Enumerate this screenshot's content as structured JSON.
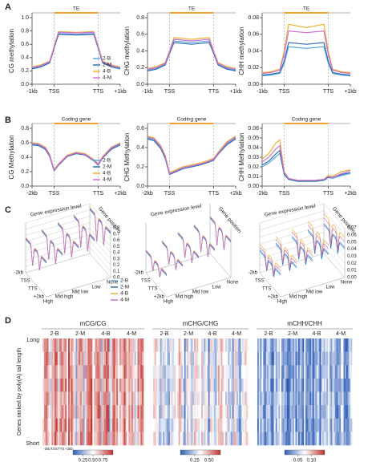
{
  "panels": [
    "A",
    "B",
    "C",
    "D"
  ],
  "chart_data": [
    {
      "type": "line",
      "ylabel": "CG methylation",
      "annotation": "TE",
      "annotation_color": "#f0a030",
      "legend": "lower right",
      "x": [
        0,
        4,
        8,
        10,
        12,
        20,
        28,
        30,
        32,
        36,
        40
      ],
      "xlim": [
        0,
        40
      ],
      "xticks": [
        {
          "value": 0,
          "label": "-1kb"
        },
        {
          "value": 10,
          "label": "TSS"
        },
        {
          "value": 30,
          "label": "TTS"
        },
        {
          "value": 40,
          "label": "+1kb"
        }
      ],
      "ylim": [
        0,
        1
      ],
      "yticks": [
        {
          "value": 0,
          "label": "0.0"
        },
        0.2,
        0.4,
        0.6,
        0.8,
        {
          "value": 1,
          "label": "1.0"
        }
      ],
      "series": [
        {
          "name": "2-B",
          "color": "#5aa6e0",
          "values": [
            0.24,
            0.27,
            0.33,
            0.55,
            0.76,
            0.75,
            0.76,
            0.55,
            0.33,
            0.27,
            0.24
          ]
        },
        {
          "name": "2-M",
          "color": "#2f6fb8",
          "values": [
            0.23,
            0.26,
            0.32,
            0.54,
            0.75,
            0.74,
            0.75,
            0.54,
            0.32,
            0.26,
            0.23
          ]
        },
        {
          "name": "4-B",
          "color": "#f0b030",
          "values": [
            0.26,
            0.29,
            0.35,
            0.57,
            0.79,
            0.78,
            0.79,
            0.57,
            0.35,
            0.29,
            0.26
          ]
        },
        {
          "name": "4-M",
          "color": "#d070d0",
          "values": [
            0.25,
            0.28,
            0.34,
            0.56,
            0.78,
            0.77,
            0.78,
            0.56,
            0.34,
            0.28,
            0.25
          ]
        }
      ]
    },
    {
      "type": "line",
      "ylabel": "CHG methylation",
      "annotation": "TE",
      "annotation_color": "#f0a030",
      "x": [
        0,
        4,
        8,
        10,
        12,
        20,
        28,
        30,
        32,
        36,
        40
      ],
      "xlim": [
        0,
        40
      ],
      "xticks": [
        {
          "value": 0,
          "label": "-1kb"
        },
        {
          "value": 10,
          "label": "TSS"
        },
        {
          "value": 30,
          "label": "TTS"
        },
        {
          "value": 40,
          "label": "+1kb"
        }
      ],
      "ylim": [
        0,
        0.8
      ],
      "yticks": [
        {
          "value": 0,
          "label": "0.0"
        },
        0.2,
        0.4,
        0.6,
        0.8
      ],
      "series": [
        {
          "name": "2-B",
          "color": "#5aa6e0",
          "values": [
            0.17,
            0.19,
            0.24,
            0.38,
            0.52,
            0.5,
            0.52,
            0.38,
            0.24,
            0.19,
            0.17
          ]
        },
        {
          "name": "2-M",
          "color": "#2f6fb8",
          "values": [
            0.16,
            0.18,
            0.23,
            0.37,
            0.5,
            0.48,
            0.5,
            0.37,
            0.23,
            0.18,
            0.16
          ]
        },
        {
          "name": "4-B",
          "color": "#f0b030",
          "values": [
            0.19,
            0.21,
            0.26,
            0.4,
            0.56,
            0.54,
            0.56,
            0.4,
            0.26,
            0.21,
            0.19
          ]
        },
        {
          "name": "4-M",
          "color": "#d070d0",
          "values": [
            0.18,
            0.2,
            0.25,
            0.39,
            0.54,
            0.52,
            0.54,
            0.39,
            0.25,
            0.2,
            0.18
          ]
        }
      ]
    },
    {
      "type": "line",
      "ylabel": "CHH methylation",
      "annotation": "TE",
      "annotation_color": "#f0a030",
      "x": [
        0,
        4,
        8,
        10,
        12,
        20,
        28,
        30,
        32,
        36,
        40
      ],
      "xlim": [
        0,
        40
      ],
      "xticks": [
        {
          "value": 0,
          "label": "-1kb"
        },
        {
          "value": 10,
          "label": "TSS"
        },
        {
          "value": 30,
          "label": "TTS"
        },
        {
          "value": 40,
          "label": "+1kb"
        }
      ],
      "ylim": [
        0,
        0.08
      ],
      "yticks": [
        {
          "value": 0,
          "label": "0.00"
        },
        0.02,
        0.04,
        0.06,
        0.08
      ],
      "series": [
        {
          "name": "2-B",
          "color": "#5aa6e0",
          "values": [
            0.01,
            0.011,
            0.013,
            0.025,
            0.045,
            0.043,
            0.045,
            0.025,
            0.013,
            0.011,
            0.01
          ]
        },
        {
          "name": "2-M",
          "color": "#2f6fb8",
          "values": [
            0.011,
            0.012,
            0.014,
            0.028,
            0.05,
            0.048,
            0.05,
            0.028,
            0.014,
            0.012,
            0.011
          ]
        },
        {
          "name": "4-B",
          "color": "#f0b030",
          "values": [
            0.014,
            0.015,
            0.018,
            0.04,
            0.072,
            0.068,
            0.072,
            0.04,
            0.018,
            0.015,
            0.014
          ]
        },
        {
          "name": "4-M",
          "color": "#d070d0",
          "values": [
            0.013,
            0.014,
            0.017,
            0.036,
            0.064,
            0.062,
            0.064,
            0.036,
            0.017,
            0.014,
            0.013
          ]
        }
      ]
    },
    {
      "type": "line",
      "ylabel": "CG Methylation",
      "annotation": "Coding gene",
      "annotation_color": "#f0a030",
      "legend": "lower right",
      "x": [
        0,
        3,
        6,
        8,
        10,
        12,
        16,
        20,
        24,
        28,
        30,
        32,
        36,
        40
      ],
      "xlim": [
        0,
        40
      ],
      "xticks": [
        {
          "value": 0,
          "label": "-2kb"
        },
        {
          "value": 10,
          "label": "TSS"
        },
        {
          "value": 30,
          "label": "TTS"
        },
        {
          "value": 40,
          "label": "+2kb"
        }
      ],
      "ylim": [
        0,
        0.8
      ],
      "yticks": [
        {
          "value": 0,
          "label": "0.0"
        },
        0.2,
        0.4,
        0.6,
        0.8
      ],
      "series": [
        {
          "name": "2-B",
          "color": "#5aa6e0",
          "values": [
            0.58,
            0.57,
            0.52,
            0.42,
            0.22,
            0.3,
            0.42,
            0.46,
            0.44,
            0.36,
            0.3,
            0.4,
            0.52,
            0.58
          ]
        },
        {
          "name": "2-M",
          "color": "#2f6fb8",
          "values": [
            0.57,
            0.56,
            0.51,
            0.41,
            0.21,
            0.29,
            0.41,
            0.45,
            0.43,
            0.35,
            0.29,
            0.39,
            0.51,
            0.57
          ]
        },
        {
          "name": "4-B",
          "color": "#f0b030",
          "values": [
            0.6,
            0.59,
            0.54,
            0.44,
            0.23,
            0.31,
            0.43,
            0.47,
            0.45,
            0.37,
            0.31,
            0.41,
            0.54,
            0.6
          ]
        },
        {
          "name": "4-M",
          "color": "#d070d0",
          "values": [
            0.59,
            0.58,
            0.53,
            0.43,
            0.22,
            0.3,
            0.42,
            0.46,
            0.44,
            0.36,
            0.3,
            0.4,
            0.53,
            0.59
          ]
        }
      ]
    },
    {
      "type": "line",
      "ylabel": "CHG Methylation",
      "annotation": "Coding gene",
      "annotation_color": "#f0a030",
      "x": [
        0,
        3,
        6,
        8,
        10,
        12,
        16,
        20,
        24,
        28,
        30,
        32,
        36,
        40
      ],
      "xlim": [
        0,
        40
      ],
      "xticks": [
        {
          "value": 0,
          "label": "-2kb"
        },
        {
          "value": 10,
          "label": "TSS"
        },
        {
          "value": 30,
          "label": "TTS"
        },
        {
          "value": 40,
          "label": "+2kb"
        }
      ],
      "ylim": [
        0,
        0.6
      ],
      "yticks": [
        {
          "value": 0,
          "label": "0.0"
        },
        0.2,
        0.4,
        0.6
      ],
      "series": [
        {
          "name": "2-B",
          "color": "#5aa6e0",
          "values": [
            0.5,
            0.48,
            0.4,
            0.3,
            0.13,
            0.15,
            0.19,
            0.21,
            0.23,
            0.26,
            0.28,
            0.34,
            0.44,
            0.5
          ]
        },
        {
          "name": "2-M",
          "color": "#2f6fb8",
          "values": [
            0.49,
            0.47,
            0.39,
            0.29,
            0.12,
            0.14,
            0.18,
            0.2,
            0.22,
            0.25,
            0.27,
            0.33,
            0.43,
            0.49
          ]
        },
        {
          "name": "4-B",
          "color": "#f0b030",
          "values": [
            0.52,
            0.5,
            0.42,
            0.32,
            0.14,
            0.16,
            0.2,
            0.22,
            0.24,
            0.27,
            0.29,
            0.35,
            0.46,
            0.52
          ]
        },
        {
          "name": "4-M",
          "color": "#d070d0",
          "values": [
            0.51,
            0.49,
            0.41,
            0.31,
            0.13,
            0.15,
            0.19,
            0.21,
            0.23,
            0.26,
            0.28,
            0.34,
            0.45,
            0.51
          ]
        }
      ]
    },
    {
      "type": "line",
      "ylabel": "CHH Methylation",
      "annotation": "Coding gene",
      "annotation_color": "#f0a030",
      "x": [
        0,
        3,
        6,
        8,
        10,
        12,
        16,
        20,
        24,
        28,
        30,
        32,
        36,
        40
      ],
      "xlim": [
        0,
        40
      ],
      "xticks": [
        {
          "value": 0,
          "label": "-2kb"
        },
        {
          "value": 10,
          "label": "TSS"
        },
        {
          "value": 30,
          "label": "TTS"
        },
        {
          "value": 40,
          "label": "+2kb"
        }
      ],
      "ylim": [
        0,
        0.06
      ],
      "yticks": [
        {
          "value": 0,
          "label": "0.00"
        },
        0.01,
        0.02,
        0.03,
        0.04,
        0.05,
        0.06
      ],
      "series": [
        {
          "name": "2-B",
          "color": "#5aa6e0",
          "values": [
            0.02,
            0.024,
            0.03,
            0.034,
            0.012,
            0.007,
            0.005,
            0.005,
            0.005,
            0.006,
            0.009,
            0.008,
            0.011,
            0.013
          ]
        },
        {
          "name": "2-M",
          "color": "#2f6fb8",
          "values": [
            0.022,
            0.026,
            0.033,
            0.037,
            0.012,
            0.007,
            0.005,
            0.005,
            0.005,
            0.006,
            0.009,
            0.009,
            0.012,
            0.014
          ]
        },
        {
          "name": "4-B",
          "color": "#f0b030",
          "values": [
            0.028,
            0.034,
            0.044,
            0.048,
            0.015,
            0.008,
            0.006,
            0.006,
            0.006,
            0.007,
            0.011,
            0.01,
            0.015,
            0.017
          ]
        },
        {
          "name": "4-M",
          "color": "#d070d0",
          "values": [
            0.025,
            0.03,
            0.038,
            0.042,
            0.014,
            0.008,
            0.006,
            0.006,
            0.006,
            0.007,
            0.01,
            0.009,
            0.013,
            0.016
          ]
        }
      ]
    },
    {
      "type": "surface3d",
      "xlabel": "Gene expression level",
      "ylabel": "Gene position",
      "legend": "lower right",
      "categories": [
        "High",
        "Mid high",
        "Mid low",
        "Low",
        "None"
      ],
      "positions": [
        "-2kb",
        "TSS",
        "TTS",
        "+2kb"
      ],
      "zlim": [
        0,
        0.8
      ],
      "zticks": [
        {
          "value": 0,
          "label": "0.0"
        },
        0.1,
        0.2,
        0.3,
        0.4,
        0.5,
        0.6,
        0.7,
        0.8
      ],
      "series": [
        {
          "name": "2-B",
          "color": "#5aa6e0",
          "values": [
            0.55,
            0.6,
            0.64,
            0.68,
            0.72
          ]
        },
        {
          "name": "2-M",
          "color": "#2f6fb8",
          "values": [
            0.54,
            0.59,
            0.63,
            0.67,
            0.71
          ]
        },
        {
          "name": "4-B",
          "color": "#f0b030",
          "values": [
            0.57,
            0.62,
            0.66,
            0.7,
            0.74
          ]
        },
        {
          "name": "4-M",
          "color": "#d070d0",
          "values": [
            0.56,
            0.61,
            0.65,
            0.69,
            0.73
          ]
        }
      ]
    },
    {
      "type": "surface3d",
      "xlabel": "Gene expression level",
      "ylabel": "Gene position",
      "categories": [
        "High",
        "Mid high",
        "Mid low",
        "Low",
        "None"
      ],
      "positions": [
        "-2kb",
        "TSS",
        "TTS",
        "+2kb"
      ],
      "zlim": [
        0,
        0.8
      ],
      "series": [
        {
          "name": "2-B",
          "color": "#5aa6e0",
          "values": [
            0.35,
            0.42,
            0.48,
            0.52,
            0.58
          ]
        },
        {
          "name": "2-M",
          "color": "#2f6fb8",
          "values": [
            0.34,
            0.41,
            0.47,
            0.51,
            0.57
          ]
        },
        {
          "name": "4-B",
          "color": "#f0b030",
          "values": [
            0.37,
            0.44,
            0.5,
            0.54,
            0.6
          ]
        },
        {
          "name": "4-M",
          "color": "#d070d0",
          "values": [
            0.36,
            0.43,
            0.49,
            0.53,
            0.59
          ]
        }
      ]
    },
    {
      "type": "surface3d",
      "xlabel": "Gene expression level",
      "ylabel": "Gene position",
      "categories": [
        "High",
        "Mid high",
        "Mid low",
        "Low",
        "None"
      ],
      "positions": [
        "-2kb",
        "TSS",
        "TTS",
        "+2kb"
      ],
      "zlim": [
        0,
        0.07
      ],
      "zticks": [
        {
          "value": 0,
          "label": "0.00"
        },
        0.01,
        0.02,
        0.03,
        0.04,
        0.05,
        0.06,
        0.07
      ],
      "series": [
        {
          "name": "2-B",
          "color": "#5aa6e0",
          "values": [
            0.03,
            0.033,
            0.036,
            0.038,
            0.04
          ]
        },
        {
          "name": "2-M",
          "color": "#2f6fb8",
          "values": [
            0.032,
            0.035,
            0.038,
            0.04,
            0.042
          ]
        },
        {
          "name": "4-B",
          "color": "#f0b030",
          "values": [
            0.04,
            0.044,
            0.048,
            0.052,
            0.056
          ]
        },
        {
          "name": "4-M",
          "color": "#d070d0",
          "values": [
            0.036,
            0.04,
            0.044,
            0.047,
            0.05
          ]
        }
      ]
    },
    {
      "type": "heatmap",
      "title": "mCG/CG",
      "columns": [
        "2-B",
        "2-M",
        "4-B",
        "4-M"
      ],
      "ylabel": "Genes ranked by poly(A) tail length",
      "ytop": "Long",
      "ybottom": "Short",
      "xticks": [
        "-2kb",
        "TSS",
        "TTS",
        "+2kb"
      ],
      "cmap": [
        "#2f5fb8",
        "#ffffff",
        "#c0302b"
      ],
      "clim": [
        0,
        1
      ],
      "cticks": [
        0.25,
        {
          "value": 0.5,
          "label": "0.50"
        },
        0.75
      ]
    },
    {
      "type": "heatmap",
      "title": "mCHG/CHG",
      "columns": [
        "2-B",
        "2-M",
        "4-B",
        "4-M"
      ],
      "cmap": [
        "#2f5fb8",
        "#ffffff",
        "#c0302b"
      ],
      "clim": [
        0,
        0.7
      ],
      "cticks": [
        0.25,
        {
          "value": 0.5,
          "label": "0.50"
        }
      ]
    },
    {
      "type": "heatmap",
      "title": "mCHH/CHH",
      "columns": [
        "2-B",
        "2-M",
        "4-B",
        "4-M"
      ],
      "cmap": [
        "#2f5fb8",
        "#ffffff",
        "#c0302b"
      ],
      "clim": [
        0,
        0.15
      ],
      "cticks": [
        0.05,
        {
          "value": 0.1,
          "label": "0.10"
        }
      ]
    }
  ]
}
